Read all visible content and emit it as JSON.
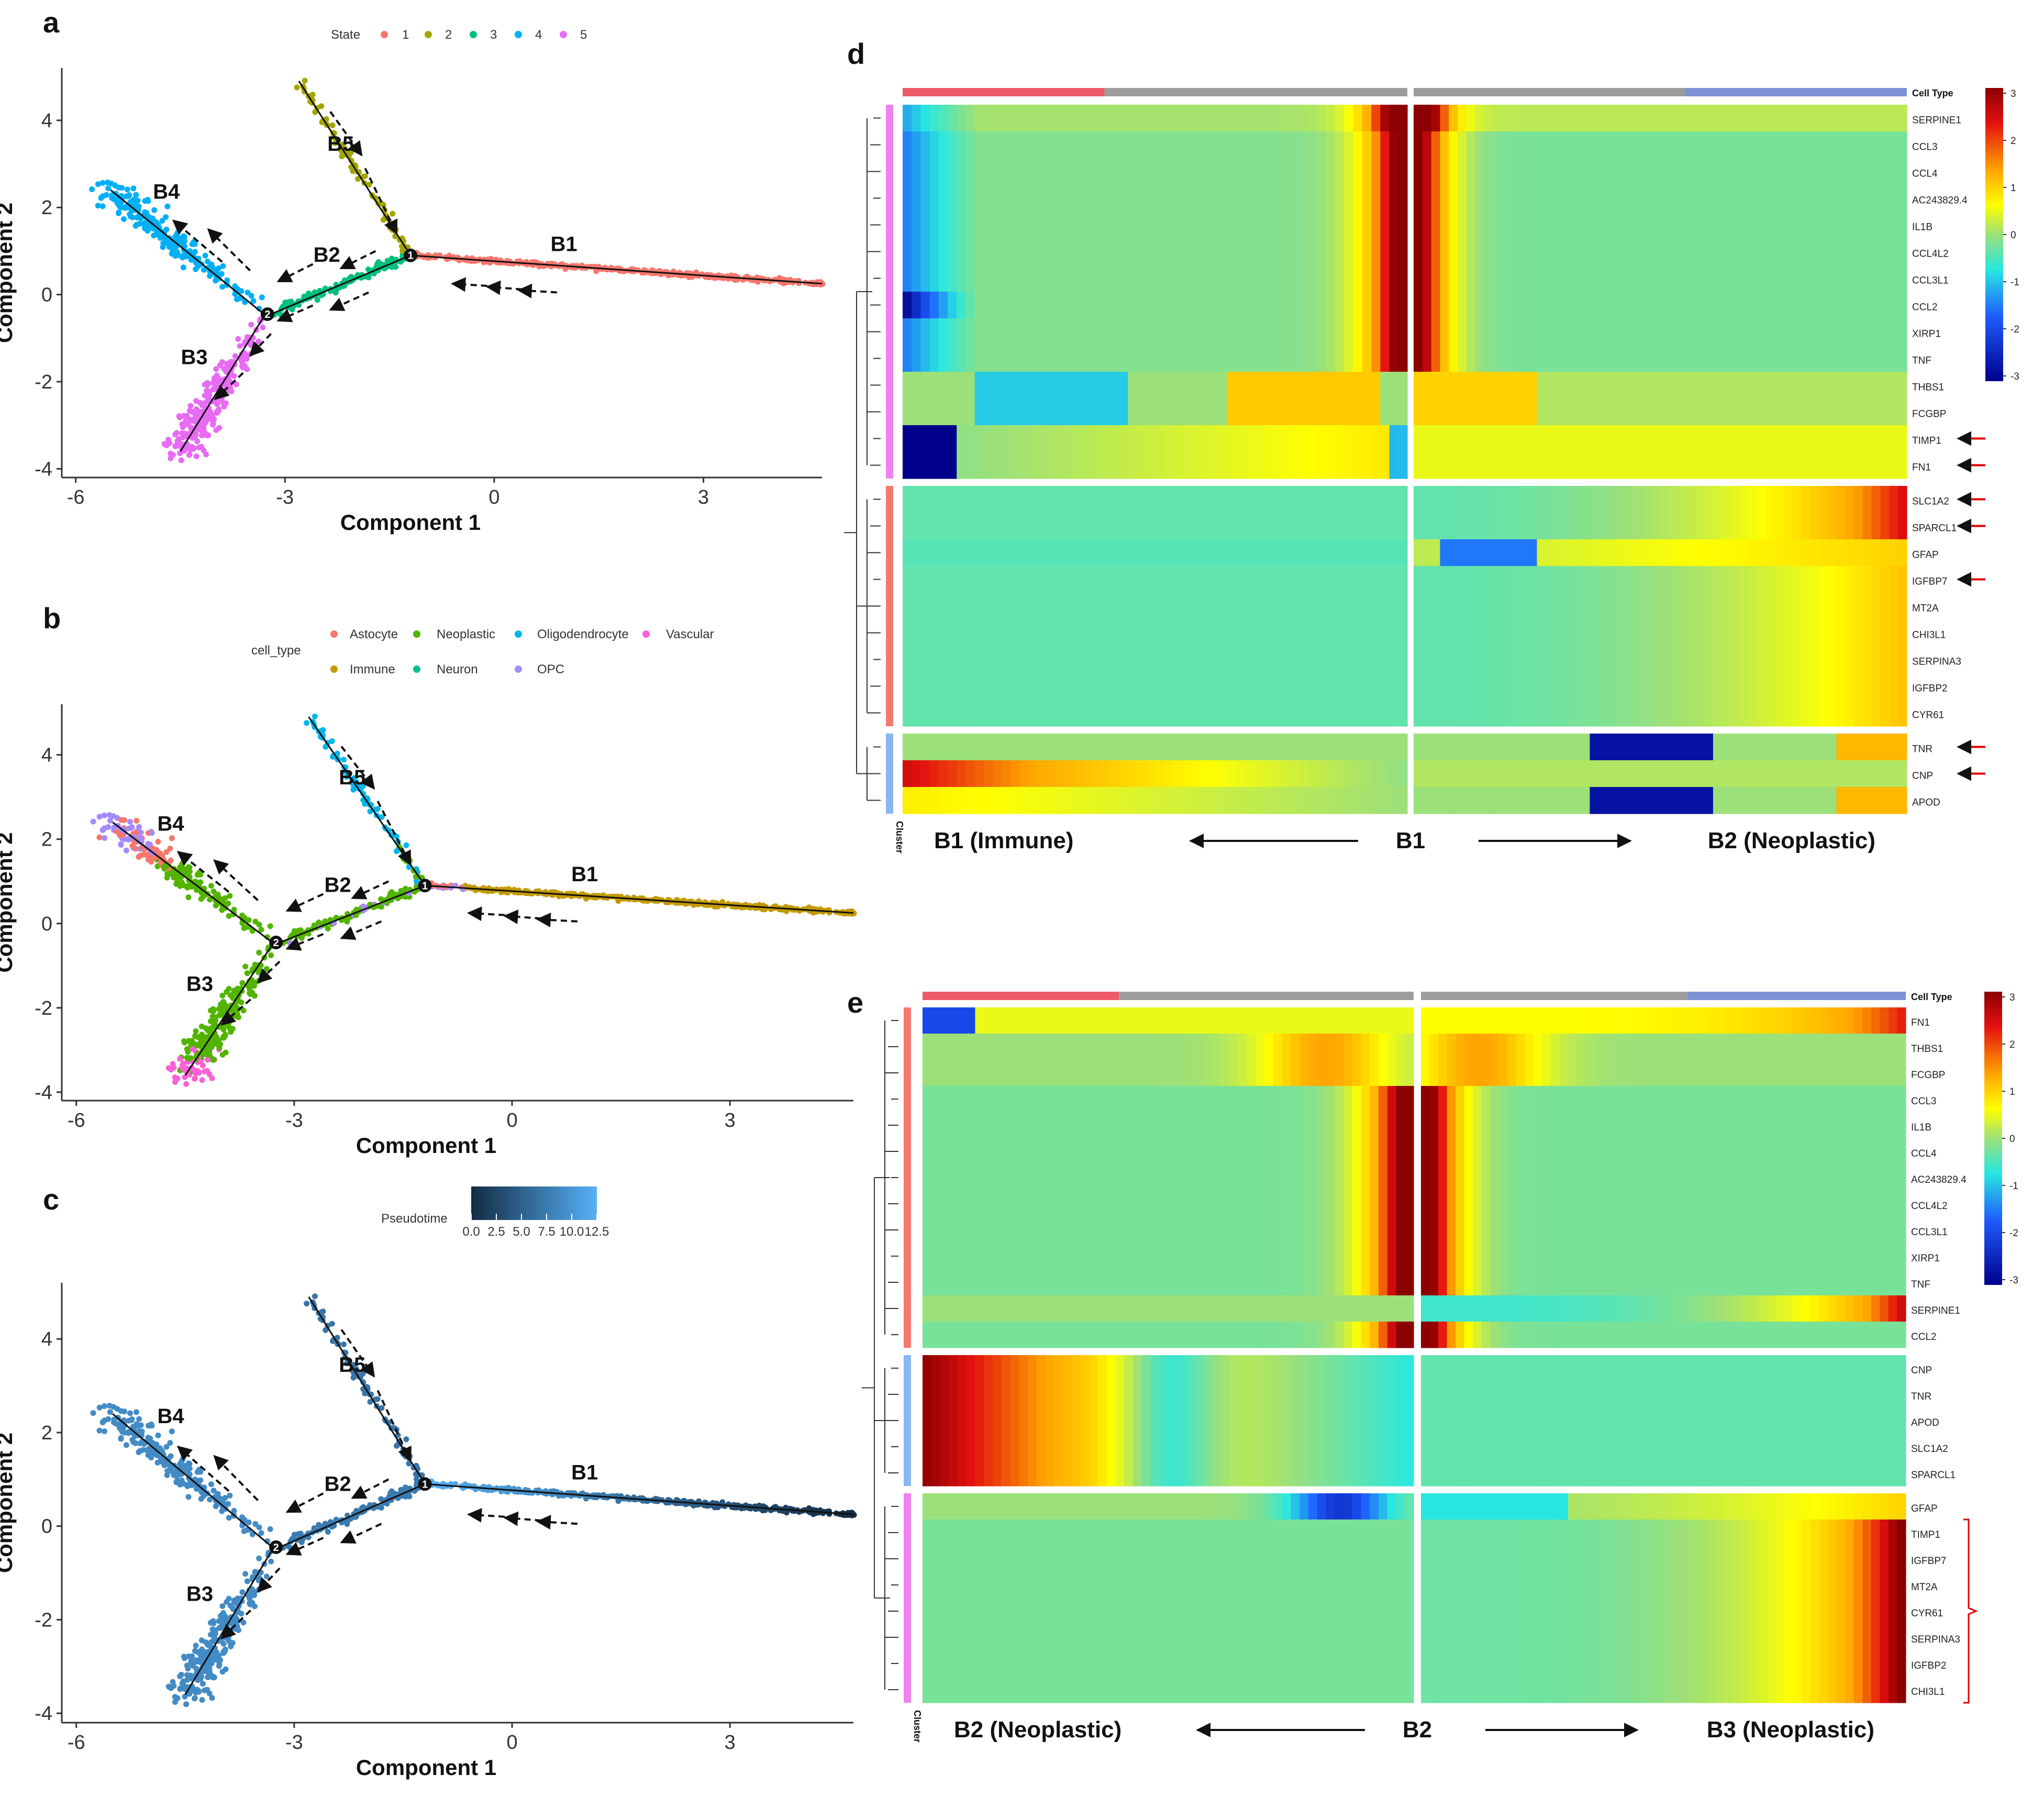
{
  "panels": {
    "a": "a",
    "b": "b",
    "c": "c",
    "d": "d",
    "e": "e"
  },
  "axis": {
    "xlabel": "Component 1",
    "ylabel": "Component 2",
    "xticks": [
      "-6",
      "-3",
      "0",
      "3"
    ],
    "yticks": [
      "4",
      "2",
      "0",
      "-2",
      "-4"
    ]
  },
  "branches": {
    "b1": "B1",
    "b2": "B2",
    "b3": "B3",
    "b4": "B4",
    "b5": "B5"
  },
  "nodes": {
    "n1": "1",
    "n2": "2"
  },
  "legend_a": {
    "title": "State",
    "items": [
      {
        "label": "1",
        "color": "#F8766D"
      },
      {
        "label": "2",
        "color": "#A3A500"
      },
      {
        "label": "3",
        "color": "#00BF7D"
      },
      {
        "label": "4",
        "color": "#00B0F6"
      },
      {
        "label": "5",
        "color": "#E76BF3"
      }
    ]
  },
  "legend_b": {
    "title": "cell_type",
    "items": [
      {
        "label": "Astocyte",
        "color": "#F8766D"
      },
      {
        "label": "Neoplastic",
        "color": "#53B400"
      },
      {
        "label": "Oligodendrocyte",
        "color": "#00B6EB"
      },
      {
        "label": "Vascular",
        "color": "#FB61D7"
      },
      {
        "label": "Immune",
        "color": "#C49A00"
      },
      {
        "label": "Neuron",
        "color": "#00C094"
      },
      {
        "label": "OPC",
        "color": "#A58AFF"
      }
    ]
  },
  "legend_c": {
    "title": "Pseudotime",
    "ticks": [
      "0.0",
      "2.5",
      "5.0",
      "7.5",
      "10.0",
      "12.5"
    ],
    "low_color": "#132B43",
    "high_color": "#56B1F7"
  },
  "chart_data": [
    {
      "type": "scatter",
      "title": "a",
      "xlabel": "Component 1",
      "ylabel": "Component 2",
      "xlim": [
        -6.2,
        4.7
      ],
      "ylim": [
        -4.2,
        5.2
      ],
      "color_by": "State",
      "segments": [
        {
          "name": "B1",
          "state": "1",
          "from": [
            -1.2,
            0.9
          ],
          "to": [
            4.7,
            0.25
          ]
        },
        {
          "name": "B2",
          "state": "3",
          "from": [
            -3.2,
            -0.45
          ],
          "to": [
            -1.2,
            0.9
          ]
        },
        {
          "name": "B3",
          "state": "5",
          "from": [
            -3.3,
            -0.5
          ],
          "to": [
            -4.5,
            -3.6
          ]
        },
        {
          "name": "B4",
          "state": "4",
          "from": [
            -3.3,
            -0.45
          ],
          "to": [
            -5.5,
            2.4
          ]
        },
        {
          "name": "B5",
          "state": "2",
          "from": [
            -1.2,
            0.9
          ],
          "to": [
            -2.8,
            4.9
          ]
        }
      ]
    },
    {
      "type": "scatter",
      "title": "b",
      "xlabel": "Component 1",
      "ylabel": "Component 2",
      "xlim": [
        -6.2,
        4.7
      ],
      "ylim": [
        -4.2,
        5.2
      ],
      "color_by": "cell_type"
    },
    {
      "type": "scatter",
      "title": "c",
      "xlabel": "Component 1",
      "ylabel": "Component 2",
      "xlim": [
        -6.2,
        4.7
      ],
      "ylim": [
        -4.2,
        5.2
      ],
      "color_by": "Pseudotime",
      "range": [
        0.0,
        12.5
      ]
    },
    {
      "type": "heatmap",
      "title": "d",
      "colorbar_ticks": [
        "3",
        "2",
        "1",
        "0",
        "-1",
        "-2",
        "-3"
      ],
      "cell_type_label": "Cell Type",
      "cluster_label": "Cluster",
      "bottom": {
        "left": "B1 (Immune)",
        "center": "B1",
        "right": "B2 (Neoplastic)"
      },
      "cell_type_bar": {
        "left": [
          "#ED5B6B",
          "#9C9C9C"
        ],
        "right": [
          "#9C9C9C",
          "#7E90D4"
        ]
      },
      "clusters": [
        {
          "color": "#EE82EE",
          "genes": [
            "SERPINE1",
            "CCL3",
            "CCL4",
            "AC243829.4",
            "IL1B",
            "CCL4L2",
            "CCL3L1",
            "CCL2",
            "XIRP1",
            "TNF",
            "THBS1",
            "FCGBP",
            "TIMP1",
            "FN1"
          ]
        },
        {
          "color": "#F4796F",
          "genes": [
            "SLC1A2",
            "SPARCL1",
            "GFAP",
            "IGFBP7",
            "MT2A",
            "CHI3L1",
            "SERPINA3",
            "IGFBP2",
            "CYR61"
          ]
        },
        {
          "color": "#8AB6F0",
          "genes": [
            "TNR",
            "CNP",
            "APOD"
          ]
        }
      ],
      "arrowed_genes": [
        "TIMP1",
        "FN1",
        "SLC1A2",
        "SPARCL1",
        "IGFBP7",
        "TNR",
        "CNP"
      ]
    },
    {
      "type": "heatmap",
      "title": "e",
      "colorbar_ticks": [
        "3",
        "2",
        "1",
        "0",
        "-1",
        "-2",
        "-3"
      ],
      "cell_type_label": "Cell Type",
      "cluster_label": "Cluster",
      "bottom": {
        "left": "B2 (Neoplastic)",
        "center": "B2",
        "right": "B3 (Neoplastic)"
      },
      "cell_type_bar": {
        "left": [
          "#ED5B6B",
          "#9C9C9C"
        ],
        "right": [
          "#9C9C9C",
          "#7E90D4"
        ]
      },
      "clusters": [
        {
          "color": "#F4796F",
          "genes": [
            "FN1",
            "THBS1",
            "FCGBP",
            "CCL3",
            "IL1B",
            "CCL4",
            "AC243829.4",
            "CCL4L2",
            "CCL3L1",
            "XIRP1",
            "TNF",
            "SERPINE1",
            "CCL2"
          ]
        },
        {
          "color": "#8AB6F0",
          "genes": [
            "CNP",
            "TNR",
            "APOD",
            "SLC1A2",
            "SPARCL1"
          ]
        },
        {
          "color": "#EE82EE",
          "genes": [
            "GFAP",
            "TIMP1",
            "IGFBP7",
            "MT2A",
            "CYR61",
            "SERPINA3",
            "IGFBP2",
            "CHI3L1"
          ]
        }
      ],
      "bracket_genes": [
        "TIMP1",
        "IGFBP7",
        "MT2A",
        "CYR61",
        "SERPINA3",
        "IGFBP2",
        "CHI3L1"
      ]
    }
  ]
}
